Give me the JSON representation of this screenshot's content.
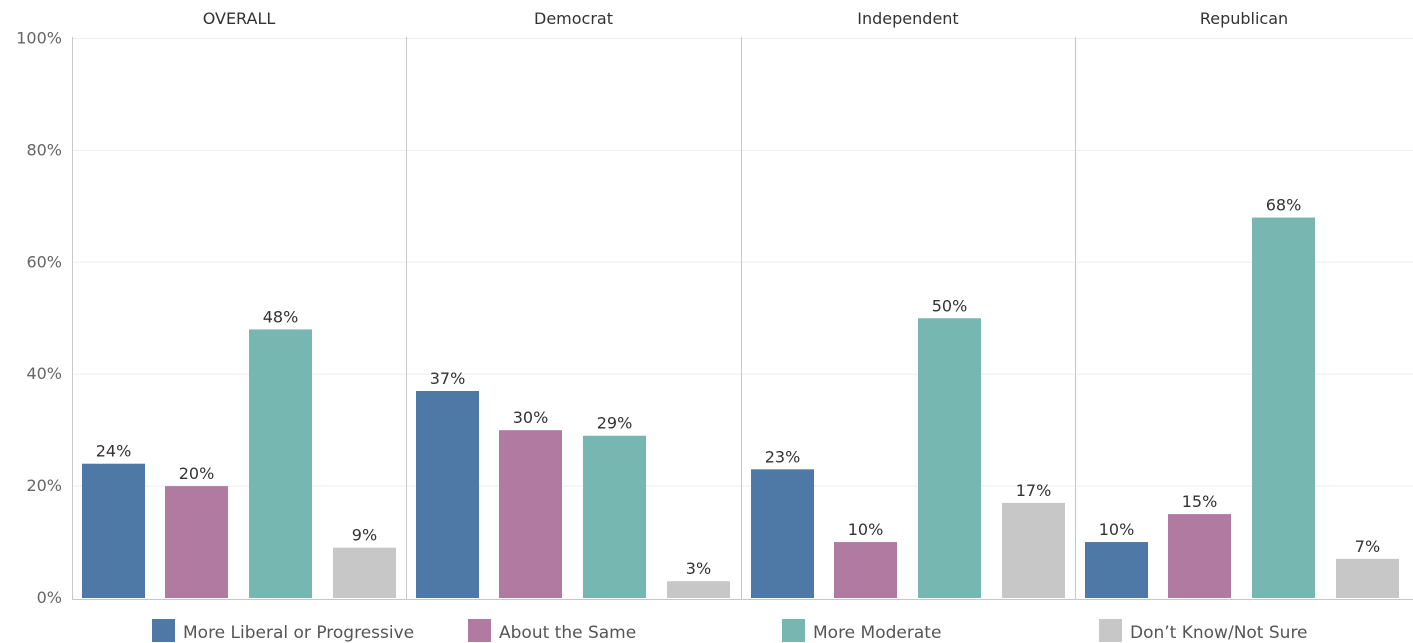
{
  "chart_data": {
    "type": "bar",
    "panels": [
      "OVERALL",
      "Democrat",
      "Independent",
      "Republican"
    ],
    "series": [
      {
        "name": "More Liberal or Progressive",
        "color": "#4e79a7",
        "values": [
          24,
          37,
          23,
          10
        ],
        "labels": [
          "24%",
          "37%",
          "23%",
          "10%"
        ]
      },
      {
        "name": "About the Same",
        "color": "#b07aa1",
        "values": [
          20,
          30,
          10,
          15
        ],
        "labels": [
          "20%",
          "30%",
          "10%",
          "15%"
        ]
      },
      {
        "name": "More Moderate",
        "color": "#76b7b2",
        "values": [
          48,
          29,
          50,
          68
        ],
        "labels": [
          "48%",
          "29%",
          "50%",
          "68%"
        ]
      },
      {
        "name": "Don’t Know/Not Sure",
        "color": "#c7c7c7",
        "values": [
          9,
          3,
          17,
          7
        ],
        "labels": [
          "9%",
          "3%",
          "17%",
          "7%"
        ]
      }
    ],
    "y_ticks": [
      "0%",
      "20%",
      "40%",
      "60%",
      "80%",
      "100%"
    ],
    "ylim": [
      0,
      100
    ],
    "grid": true,
    "legend_position": "bottom"
  }
}
